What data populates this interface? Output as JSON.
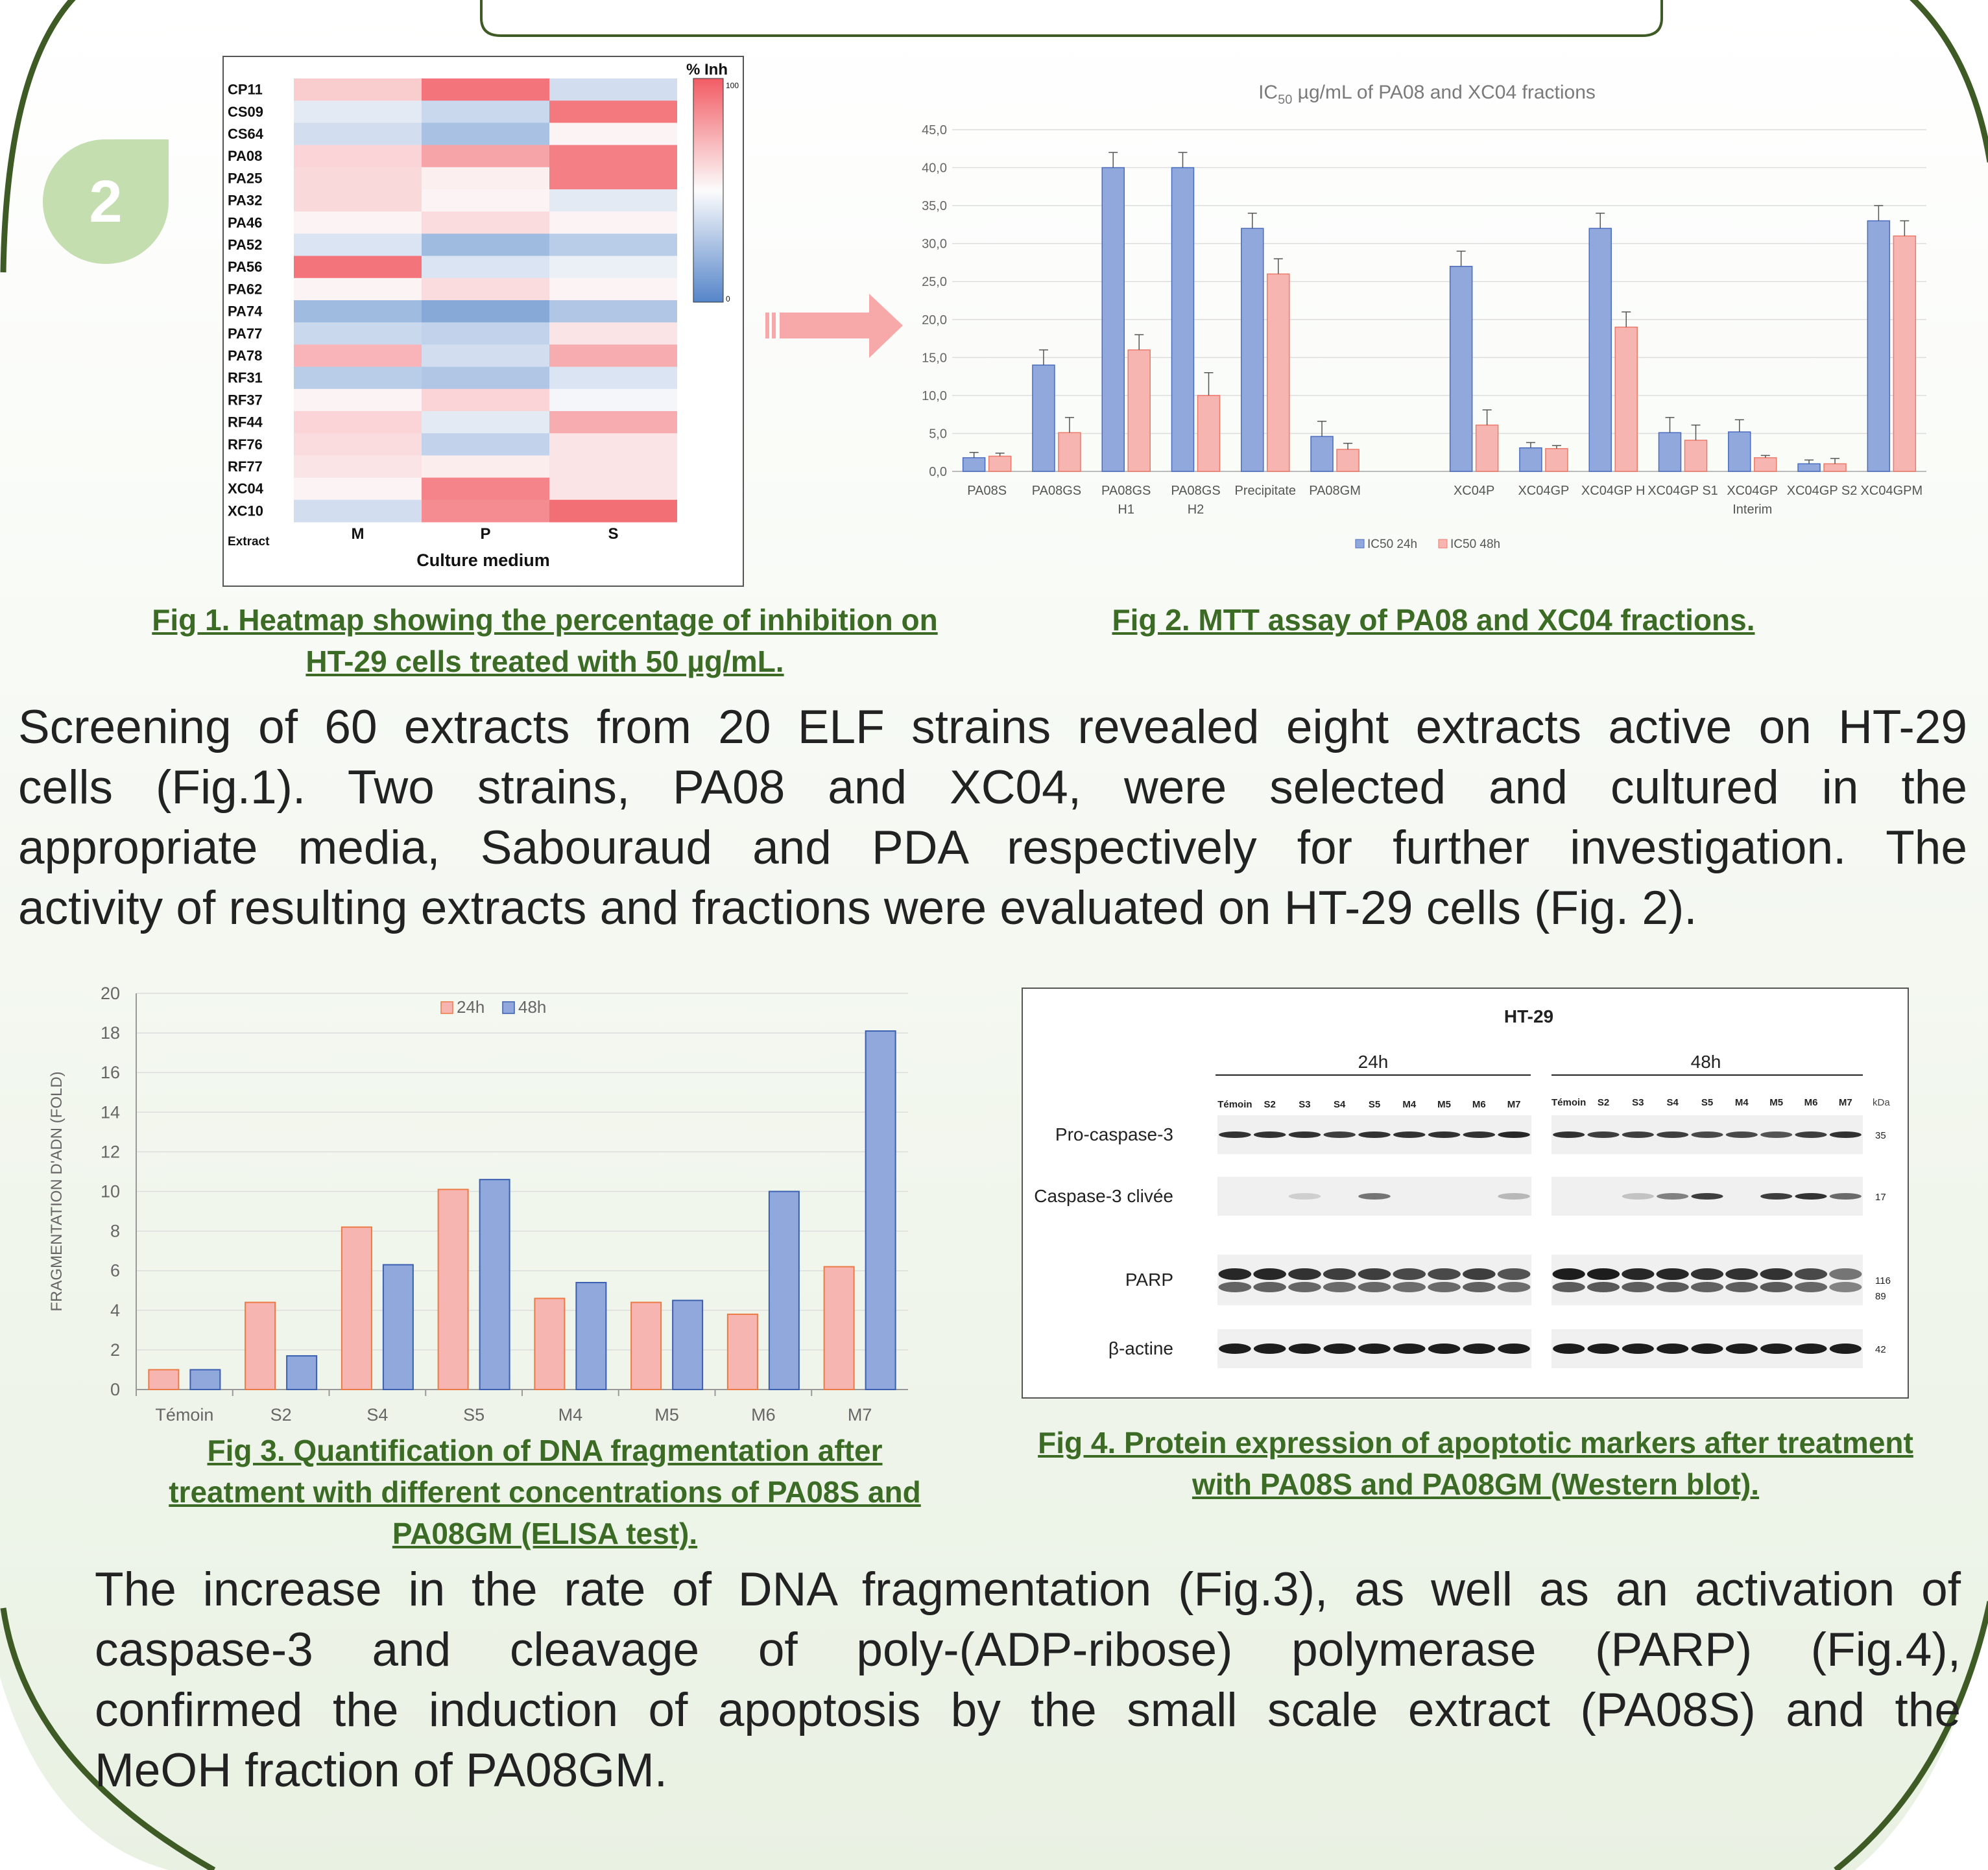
{
  "section_number": "2",
  "colors": {
    "frame": "#3e5b26",
    "caption": "#3b6b25",
    "blue": "#90a8dc",
    "pink": "#f7b5b2",
    "heat_hi": "#f25c64",
    "heat_lo": "#5585c9"
  },
  "fig1": {
    "caption_line1": "Fig 1. Heatmap showing the percentage of inhibition on",
    "caption_line2": "HT-29 cells treated with 50 µg/mL.",
    "chart_data": {
      "type": "heatmap",
      "rows": [
        "CP11",
        "CS09",
        "CS64",
        "PA08",
        "PA25",
        "PA32",
        "PA46",
        "PA52",
        "PA56",
        "PA62",
        "PA74",
        "PA77",
        "PA78",
        "RF31",
        "RF37",
        "RF44",
        "RF76",
        "RF77",
        "XC04",
        "XC10"
      ],
      "columns": [
        "M",
        "P",
        "S"
      ],
      "values": [
        [
          30,
          85,
          -25
        ],
        [
          -15,
          -30,
          82
        ],
        [
          -25,
          -50,
          5
        ],
        [
          25,
          55,
          78
        ],
        [
          22,
          8,
          78
        ],
        [
          22,
          5,
          -15
        ],
        [
          5,
          20,
          5
        ],
        [
          -20,
          -55,
          -40
        ],
        [
          85,
          -20,
          -10
        ],
        [
          5,
          20,
          5
        ],
        [
          -55,
          -70,
          -45
        ],
        [
          -30,
          -35,
          15
        ],
        [
          45,
          -25,
          50
        ],
        [
          -40,
          -45,
          -20
        ],
        [
          5,
          25,
          -5
        ],
        [
          25,
          -15,
          50
        ],
        [
          20,
          -35,
          15
        ],
        [
          15,
          10,
          15
        ],
        [
          5,
          75,
          15
        ],
        [
          -25,
          70,
          88
        ]
      ],
      "xlabel": "Culture medium",
      "row_axis_label": "Extract",
      "legend_title": "% Inh",
      "scale_max": "100",
      "scale_min": "0"
    }
  },
  "fig2": {
    "caption": "Fig 2. MTT assay of PA08 and XC04 fractions.",
    "chart_data": {
      "type": "bar",
      "title_prefix": "IC",
      "title_sub": "50",
      "title_suffix": " µg/mL of PA08 and XC04 fractions",
      "categories": [
        {
          "lines": [
            "PA08S"
          ]
        },
        {
          "lines": [
            "PA08GS"
          ]
        },
        {
          "lines": [
            "PA08GS",
            "H1"
          ]
        },
        {
          "lines": [
            "PA08GS",
            "H2"
          ]
        },
        {
          "lines": [
            "Precipitate"
          ]
        },
        {
          "lines": [
            "PA08GM"
          ]
        },
        {
          "lines": [
            ""
          ]
        },
        {
          "lines": [
            "XC04P"
          ]
        },
        {
          "lines": [
            "XC04GP"
          ]
        },
        {
          "lines": [
            "XC04GP H"
          ]
        },
        {
          "lines": [
            "XC04GP S1"
          ]
        },
        {
          "lines": [
            "XC04GP",
            "Interim"
          ]
        },
        {
          "lines": [
            "XC04GP S2"
          ]
        },
        {
          "lines": [
            "XC04GPM"
          ]
        }
      ],
      "series": [
        {
          "name": "IC50 24h",
          "values": [
            1.8,
            14,
            40,
            40,
            32,
            4.6,
            null,
            27,
            3.1,
            32,
            5.1,
            5.2,
            1.0,
            33
          ],
          "errors": [
            0.7,
            2,
            2,
            2,
            2,
            2,
            null,
            2,
            0.7,
            2,
            2,
            1.6,
            0.5,
            2
          ],
          "color": "#90a8dc"
        },
        {
          "name": "IC50 48h",
          "values": [
            2.0,
            5.1,
            16,
            10,
            26,
            2.9,
            null,
            6.1,
            3.0,
            19,
            4.1,
            1.8,
            1.0,
            31
          ],
          "errors": [
            0.4,
            2,
            2,
            3,
            2,
            0.8,
            null,
            2,
            0.4,
            2,
            2,
            0.3,
            0.7,
            2
          ],
          "color": "#f7b5b2"
        }
      ],
      "ylim": [
        0,
        45
      ],
      "yticks": [
        "0,0",
        "5,0",
        "10,0",
        "15,0",
        "20,0",
        "25,0",
        "30,0",
        "35,0",
        "40,0",
        "45,0"
      ]
    }
  },
  "para1": [
    "Screening of 60 extracts from 20 ELF strains revealed eight extracts active on HT-29",
    "cells (Fig.1). Two strains, PA08 and XC04, were selected and cultured in the",
    "appropriate media, Sabouraud and PDA respectively for further investigation. The",
    "activity of resulting extracts and fractions were evaluated on HT-29 cells (Fig. 2)."
  ],
  "fig3": {
    "caption_line1": "Fig 3. Quantification of DNA fragmentation after",
    "caption_line2": "treatment with different concentrations of PA08S and",
    "caption_line3": "PA08GM (ELISA test).",
    "chart_data": {
      "type": "bar",
      "categories": [
        "Témoin",
        "S2",
        "S4",
        "S5",
        "M4",
        "M5",
        "M6",
        "M7"
      ],
      "series": [
        {
          "name": "24h",
          "values": [
            1.0,
            4.4,
            8.2,
            10.1,
            4.6,
            4.4,
            3.8,
            6.2
          ],
          "color": "#f7b5b2"
        },
        {
          "name": "48h",
          "values": [
            1.0,
            1.7,
            6.3,
            10.6,
            5.4,
            4.5,
            10.0,
            18.1
          ],
          "color": "#90a8dc"
        }
      ],
      "ylabel": "FRAGMENTATION D'ADN (FOLD)",
      "ylim": [
        0,
        20
      ],
      "yticks": [
        "0",
        "2",
        "4",
        "6",
        "8",
        "10",
        "12",
        "14",
        "16",
        "18",
        "20"
      ]
    }
  },
  "fig4": {
    "caption_line1": "Fig 4. Protein expression of apoptotic markers after treatment",
    "caption_line2": "with PA08S and PA08GM (Western blot).",
    "title": "HT-29",
    "group1": "24h",
    "group2": "48h",
    "lanes": [
      "Témoin",
      "S2",
      "S3",
      "S4",
      "S5",
      "M4",
      "M5",
      "M6",
      "M7"
    ],
    "kda_label": "kDa",
    "rows": [
      {
        "label": "Pro-caspase-3",
        "kda": "35"
      },
      {
        "label": "Caspase-3 clivée",
        "kda": "17"
      },
      {
        "label": "PARP",
        "kda": "116",
        "kda2": "89"
      },
      {
        "label": "β-actine",
        "kda": "42"
      }
    ]
  },
  "para2": [
    "The increase in the rate of DNA fragmentation (Fig.3), as well as an activation of",
    "caspase-3 and cleavage of poly-(ADP-ribose) polymerase (PARP) (Fig.4),",
    "confirmed the induction of apoptosis by the small scale extract (PA08S) and the",
    "MeOH fraction of PA08GM."
  ]
}
